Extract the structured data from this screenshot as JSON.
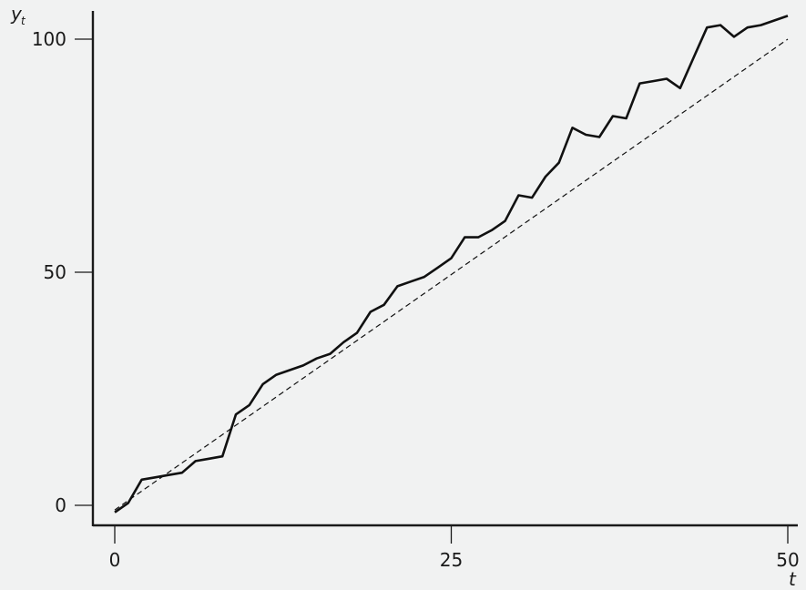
{
  "colors": {
    "background": "#f1f2f2",
    "axis": "#1a1a1a",
    "series": "#111111"
  },
  "chart_data": {
    "type": "line",
    "xlim": [
      0,
      50
    ],
    "ylim": [
      0,
      100
    ],
    "x_ticks": [
      0,
      25,
      50
    ],
    "y_ticks": [
      0,
      50,
      100
    ],
    "xlabel": "t",
    "ylabel": "y",
    "ylabel_subscript": "t",
    "grid": false,
    "legend": "none",
    "series": [
      {
        "style": "solid",
        "x": [
          0,
          1,
          2,
          3,
          4,
          5,
          6,
          7,
          8,
          9,
          10,
          11,
          12,
          13,
          14,
          15,
          16,
          17,
          18,
          19,
          20,
          21,
          22,
          23,
          24,
          25,
          26,
          27,
          28,
          29,
          30,
          31,
          32,
          33,
          34,
          35,
          36,
          37,
          38,
          39,
          40,
          41,
          42,
          43,
          44,
          45,
          46,
          47,
          48,
          49,
          50
        ],
        "y": [
          -1.5,
          0.5,
          5.5,
          6,
          6.5,
          7,
          9.5,
          10,
          10.5,
          19.5,
          21.5,
          26,
          28,
          29,
          30,
          31.5,
          32.5,
          35,
          37,
          41.5,
          43,
          47,
          48,
          49,
          51,
          53,
          57.5,
          57.5,
          59,
          61,
          66.5,
          66,
          70.5,
          73.5,
          81,
          79.5,
          79,
          83.5,
          83,
          90.5,
          91,
          91.5,
          89.5,
          96,
          102.5,
          103,
          100.5,
          102.5,
          103,
          104,
          105
        ]
      },
      {
        "style": "dashed",
        "x": [
          0,
          50
        ],
        "y": [
          -1,
          100
        ]
      }
    ]
  }
}
